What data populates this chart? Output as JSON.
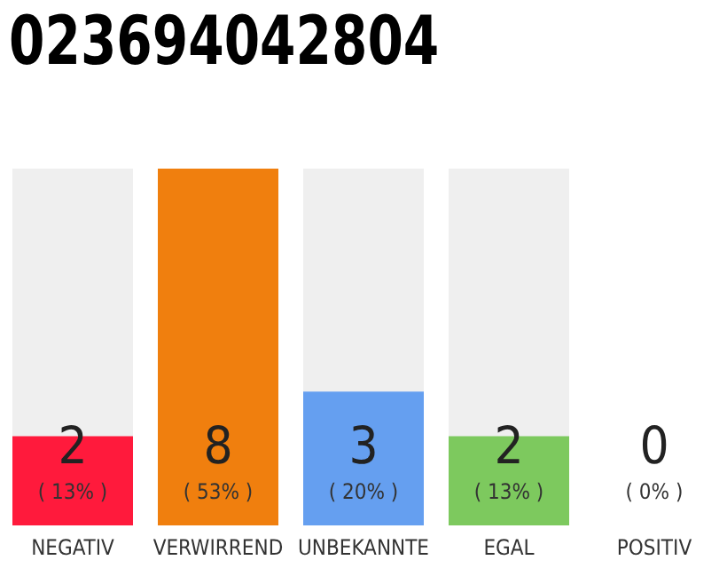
{
  "chart_data": {
    "type": "bar",
    "title": "023694042804",
    "categories": [
      "NEGATIV",
      "VERWIRREND",
      "UNBEKANNTE",
      "EGAL",
      "POSITIV"
    ],
    "values": [
      2,
      8,
      3,
      2,
      0
    ],
    "colors": [
      "#ff1a3c",
      "#f07f0e",
      "#659ff0",
      "#7dc95e",
      "#22aa44"
    ],
    "value_labels": [
      "2\n( 13% )",
      "8\n( 53% )",
      "3\n( 20% )",
      "2\n( 13% )",
      "0\n( 0% )"
    ]
  }
}
